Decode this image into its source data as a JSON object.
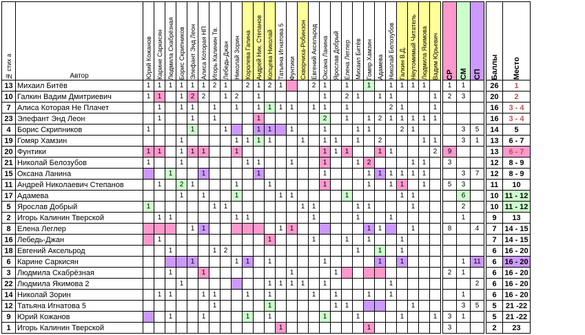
{
  "header": {
    "num": "№ стих а",
    "author": "Автор",
    "judges": [
      "Юрий Кожанов",
      "Карине Саркисян",
      "Людмила Скабрёзная",
      "Борис Скрипников",
      "Элефант Энд Леон",
      "Алиса Которая НП",
      "Игорь Калинин Тв.",
      "Лебедь-Джан",
      "Николай Зорин",
      "Королева Гапина",
      "Андрей Ник. Степанов",
      "Копцева Николай",
      "Татьяна Игнатова 5",
      "Фунтики",
      "Скворчиха-Робинзон",
      "Евгений Аксельрод",
      "Оксана Ланина",
      "Ярослав Добрый",
      "Елена Леглер",
      "Михаил Битёв",
      "Гомяр Хамзин",
      "Адамева",
      "Николай Белозубов",
      "Галкин В.Д.",
      "Неутомимый Читатель",
      "Людмила Якимова",
      "Вадим Юрьевич"
    ],
    "sr": "СР",
    "sm": "СМ",
    "sp": "СП",
    "score": "Баллы",
    "place": "Место"
  },
  "colors": {
    "pink": "#ff99cc",
    "purple": "#cc99ff",
    "green": "#ccffcc",
    "yellow": "#ffff99",
    "place_red": "#c0504d",
    "place_pink_bg": "#ff99cc"
  },
  "rows": [
    {
      "num": "13",
      "author": "Михаил Битёв",
      "score": "26",
      "place": "1"
    },
    {
      "num": "10",
      "author": "Галкин Вадим Дмитриевич",
      "score": "20",
      "place": "2"
    },
    {
      "num": "7",
      "author": "Алиса Которая Не Плачет",
      "score": "16",
      "place": "3 - 4"
    },
    {
      "num": "23",
      "author": "Элефант Энд Леон",
      "score": "16",
      "place": "3 - 4"
    },
    {
      "num": "4",
      "author": "Борис Скрипников",
      "score": "14",
      "place": "5"
    },
    {
      "num": "19",
      "author": "Гомяр Хамзин",
      "score": "13",
      "place": "6 - 7"
    },
    {
      "num": "20",
      "author": "Фунтики",
      "score": "13",
      "place": "6 - 7"
    },
    {
      "num": "21",
      "author": "Николай Белозубов",
      "score": "12",
      "place": "8 - 9"
    },
    {
      "num": "15",
      "author": "Оксана Ланина",
      "score": "12",
      "place": "8 - 9"
    },
    {
      "num": "11",
      "author": "Андрей Николаевич Степанов",
      "score": "11",
      "place": "10"
    },
    {
      "num": "17",
      "author": "Адамева",
      "score": "10",
      "place": "11 - 12"
    },
    {
      "num": "5",
      "author": "Ярослав Добрый",
      "score": "10",
      "place": "11 - 12"
    },
    {
      "num": "2",
      "author": "Игорь Калинин Тверской",
      "score": "9",
      "place": "13"
    },
    {
      "num": "8",
      "author": "Елена Леглер",
      "score": "7",
      "place": "14 - 15"
    },
    {
      "num": "16",
      "author": "Лебедь-Джан",
      "score": "7",
      "place": "14 - 15"
    },
    {
      "num": "18",
      "author": "Евгений Аксельрод",
      "score": "6",
      "place": "16 - 20"
    },
    {
      "num": "6",
      "author": "Карине Саркисян",
      "score": "6",
      "place": "16 - 20"
    },
    {
      "num": "3",
      "author": "Людмила Скабрёзная",
      "score": "6",
      "place": "16 - 20"
    },
    {
      "num": "22",
      "author": "Людмила Якимова 2",
      "score": "6",
      "place": "16 - 20"
    },
    {
      "num": "14",
      "author": "Николай Зорин",
      "score": "6",
      "place": "16 - 20"
    },
    {
      "num": "12",
      "author": "Татьяна Игнатова 5",
      "score": "5",
      "place": "21 -22"
    },
    {
      "num": "9",
      "author": "Юрий Кожанов",
      "score": "5",
      "place": "21 -22"
    },
    {
      "num": "1",
      "author": "Игорь Калинин Тверской",
      "score": "2",
      "place": "23"
    }
  ]
}
